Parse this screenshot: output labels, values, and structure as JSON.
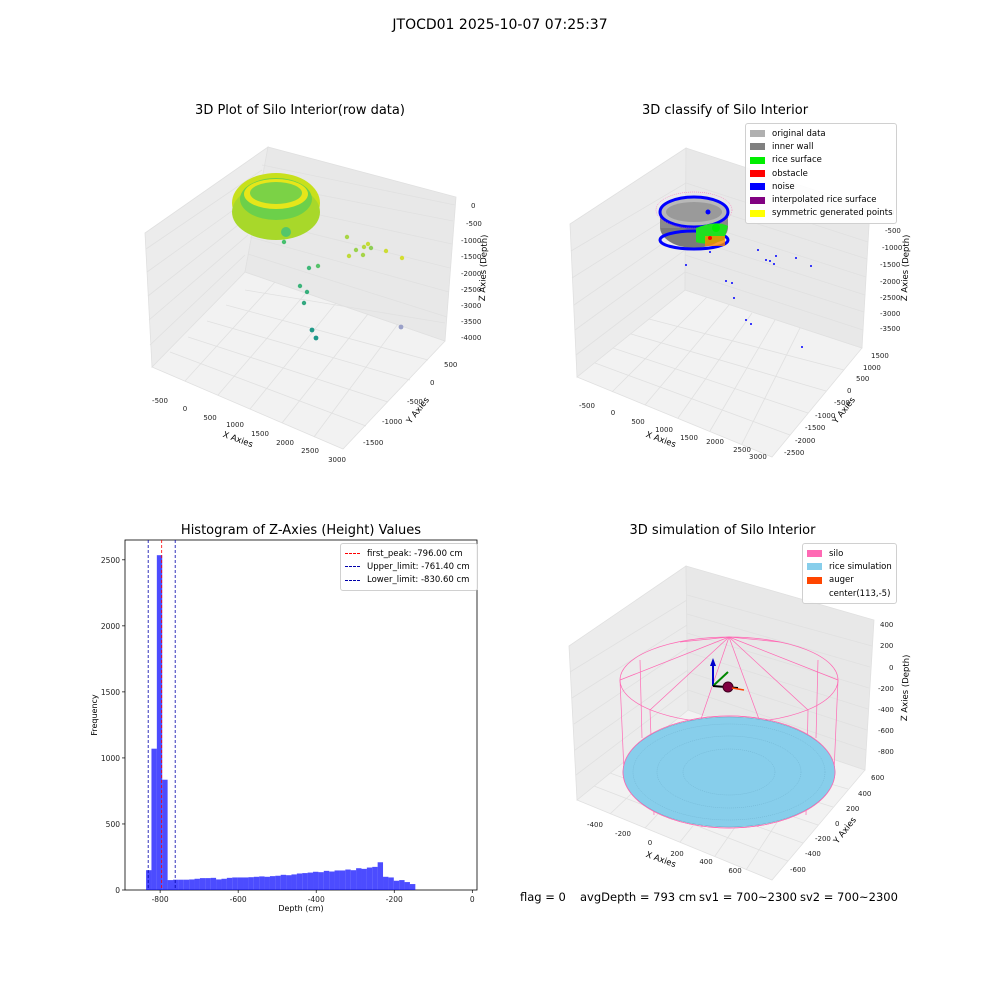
{
  "figure": {
    "suptitle": "JTOCD01 2025-10-07 07:25:37"
  },
  "panels": {
    "raw": {
      "title": "3D Plot of Silo Interior(row data)",
      "xlabel": "X Axies",
      "ylabel": "Y Axies",
      "zlabel": "Z Axies (Depth)",
      "xticks": [
        "-500",
        "0",
        "500",
        "1000",
        "1500",
        "2000",
        "2500",
        "3000"
      ],
      "yticks": [
        "500",
        "0",
        "-500",
        "-1000",
        "-1500"
      ],
      "zticks": [
        "0",
        "-500",
        "-1000",
        "-1500",
        "-2000",
        "-2500",
        "-3000",
        "-3500",
        "-4000"
      ]
    },
    "classify": {
      "title": "3D classify of Silo Interior",
      "xlabel": "X Axies",
      "ylabel": "Y Axies",
      "zlabel": "Z Axies (Depth)",
      "xticks": [
        "-500",
        "0",
        "500",
        "1000",
        "1500",
        "2000",
        "2500",
        "3000"
      ],
      "yticks": [
        "1500",
        "1000",
        "500",
        "0",
        "-500",
        "-1000",
        "-1500",
        "-2000",
        "-2500"
      ],
      "zticks": [
        "0",
        "-500",
        "-1000",
        "-1500",
        "-2000",
        "-2500",
        "-3000",
        "-3500"
      ],
      "legend": [
        {
          "label": "original data",
          "color": "#b0b0b0"
        },
        {
          "label": "inner wall",
          "color": "#808080"
        },
        {
          "label": "rice surface",
          "color": "#00ee00"
        },
        {
          "label": "obstacle",
          "color": "#ff0000"
        },
        {
          "label": "noise",
          "color": "#0000ff"
        },
        {
          "label": "interpolated rice surface",
          "color": "#800080"
        },
        {
          "label": "symmetric generated points",
          "color": "#ffff00"
        }
      ]
    },
    "sim": {
      "title": "3D simulation of Silo Interior",
      "xlabel": "X Axies",
      "ylabel": "Y Axies",
      "zlabel": "Z Axies (Depth)",
      "xticks": [
        "-400",
        "-200",
        "0",
        "200",
        "400",
        "600"
      ],
      "yticks": [
        "600",
        "400",
        "200",
        "0",
        "-200",
        "-400",
        "-600"
      ],
      "zticks": [
        "400",
        "200",
        "0",
        "-200",
        "-400",
        "-600",
        "-800"
      ],
      "legend": [
        {
          "label": "silo",
          "color": "#ff69b4"
        },
        {
          "label": "rice simulation",
          "color": "#87ceeb"
        },
        {
          "label": "auger",
          "color": "#ff4500"
        },
        {
          "label": "center(113,-5)",
          "color": "#ffffff"
        }
      ]
    }
  },
  "chart_data": {
    "type": "bar",
    "title": "Histogram of Z-Axies (Height) Values",
    "xlabel": "Depth (cm)",
    "ylabel": "Frequency",
    "xlim": [
      -890,
      12
    ],
    "ylim": [
      0,
      2650
    ],
    "xticks": [
      -800,
      -600,
      -400,
      -200,
      0
    ],
    "yticks": [
      0,
      500,
      1000,
      1500,
      2000,
      2500
    ],
    "bar_color": "#0000ff",
    "bin_start": -836,
    "bin_width": 13.8,
    "values": [
      150,
      1070,
      2535,
      835,
      75,
      78,
      78,
      78,
      80,
      85,
      90,
      90,
      92,
      80,
      85,
      92,
      95,
      95,
      95,
      97,
      100,
      103,
      100,
      105,
      108,
      115,
      112,
      118,
      125,
      128,
      132,
      138,
      135,
      145,
      140,
      148,
      148,
      155,
      150,
      165,
      160,
      170,
      175,
      210,
      100,
      95,
      70,
      75,
      60,
      45
    ],
    "vlines": [
      {
        "label": "first_peak: -796.00 cm",
        "x": -796.0,
        "color": "#ff0000"
      },
      {
        "label": "Upper_limit: -761.40 cm",
        "x": -761.4,
        "color": "#0000aa"
      },
      {
        "label": "Lower_limit: -830.60 cm",
        "x": -830.6,
        "color": "#0000aa"
      }
    ],
    "legend_position": "top-right"
  },
  "footer": {
    "flag": "flag = 0",
    "avg": "avgDepth = 793 cm",
    "sv1": "sv1 = 700~2300",
    "sv2": "sv2 = 700~2300"
  }
}
